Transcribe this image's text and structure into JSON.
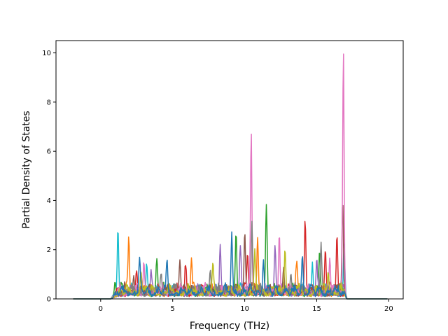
{
  "chart_data": {
    "type": "line",
    "title": "",
    "xlabel": "Frequency (THz)",
    "ylabel": "Partial Density of States",
    "xlim": [
      -3.1,
      21.0
    ],
    "ylim": [
      0,
      10.5
    ],
    "xticks": [
      0,
      5,
      10,
      15,
      20
    ],
    "yticks": [
      0,
      2,
      4,
      6,
      8,
      10
    ],
    "grid": false,
    "legend": "none",
    "colors": [
      "#1f77b4",
      "#ff7f0e",
      "#2ca02c",
      "#d62728",
      "#9467bd",
      "#8c564b",
      "#e377c2",
      "#7f7f7f",
      "#bcbd22",
      "#17becf"
    ],
    "frequency_range": [
      -1.9,
      19.9
    ],
    "series": [
      {
        "color": "#17becf",
        "peaks": [
          [
            1.2,
            2.75
          ],
          [
            3.2,
            1.2
          ],
          [
            14.7,
            1.2
          ],
          [
            16.9,
            1.7
          ]
        ]
      },
      {
        "color": "#ff7f0e",
        "peaks": [
          [
            1.95,
            2.2
          ],
          [
            6.3,
            1.25
          ],
          [
            10.9,
            2.2
          ],
          [
            13.6,
            1.1
          ]
        ]
      },
      {
        "color": "#2ca02c",
        "peaks": [
          [
            1.0,
            0.55
          ],
          [
            3.9,
            1.3
          ],
          [
            9.4,
            2.6
          ],
          [
            11.5,
            3.5
          ],
          [
            15.2,
            1.6
          ]
        ]
      },
      {
        "color": "#d62728",
        "peaks": [
          [
            2.5,
            0.9
          ],
          [
            5.9,
            1.1
          ],
          [
            10.2,
            1.7
          ],
          [
            14.2,
            2.75
          ],
          [
            15.6,
            1.8
          ],
          [
            16.4,
            2.25
          ]
        ]
      },
      {
        "color": "#9467bd",
        "peaks": [
          [
            3.5,
            1.0
          ],
          [
            8.3,
            2.0
          ],
          [
            9.7,
            1.6
          ],
          [
            12.1,
            1.8
          ],
          [
            15.0,
            1.4
          ]
        ]
      },
      {
        "color": "#8c564b",
        "peaks": [
          [
            2.3,
            0.7
          ],
          [
            5.5,
            1.45
          ],
          [
            10.0,
            2.5
          ],
          [
            12.7,
            1.1
          ],
          [
            16.8,
            3.8
          ]
        ]
      },
      {
        "color": "#e377c2",
        "peaks": [
          [
            3.0,
            1.1
          ],
          [
            10.45,
            6.5
          ],
          [
            12.4,
            2.5
          ],
          [
            15.9,
            1.45
          ],
          [
            16.85,
            10.0
          ]
        ]
      },
      {
        "color": "#7f7f7f",
        "peaks": [
          [
            4.2,
            0.8
          ],
          [
            7.6,
            0.9
          ],
          [
            10.5,
            2.95
          ],
          [
            13.2,
            0.9
          ],
          [
            15.3,
            1.9
          ]
        ]
      },
      {
        "color": "#bcbd22",
        "peaks": [
          [
            2.8,
            1.0
          ],
          [
            7.8,
            1.05
          ],
          [
            10.7,
            1.5
          ],
          [
            12.8,
            1.8
          ],
          [
            15.8,
            0.95
          ]
        ]
      },
      {
        "color": "#1f77b4",
        "peaks": [
          [
            2.7,
            1.35
          ],
          [
            4.6,
            1.15
          ],
          [
            9.1,
            2.3
          ],
          [
            11.3,
            1.4
          ],
          [
            14.0,
            1.6
          ]
        ]
      }
    ]
  }
}
